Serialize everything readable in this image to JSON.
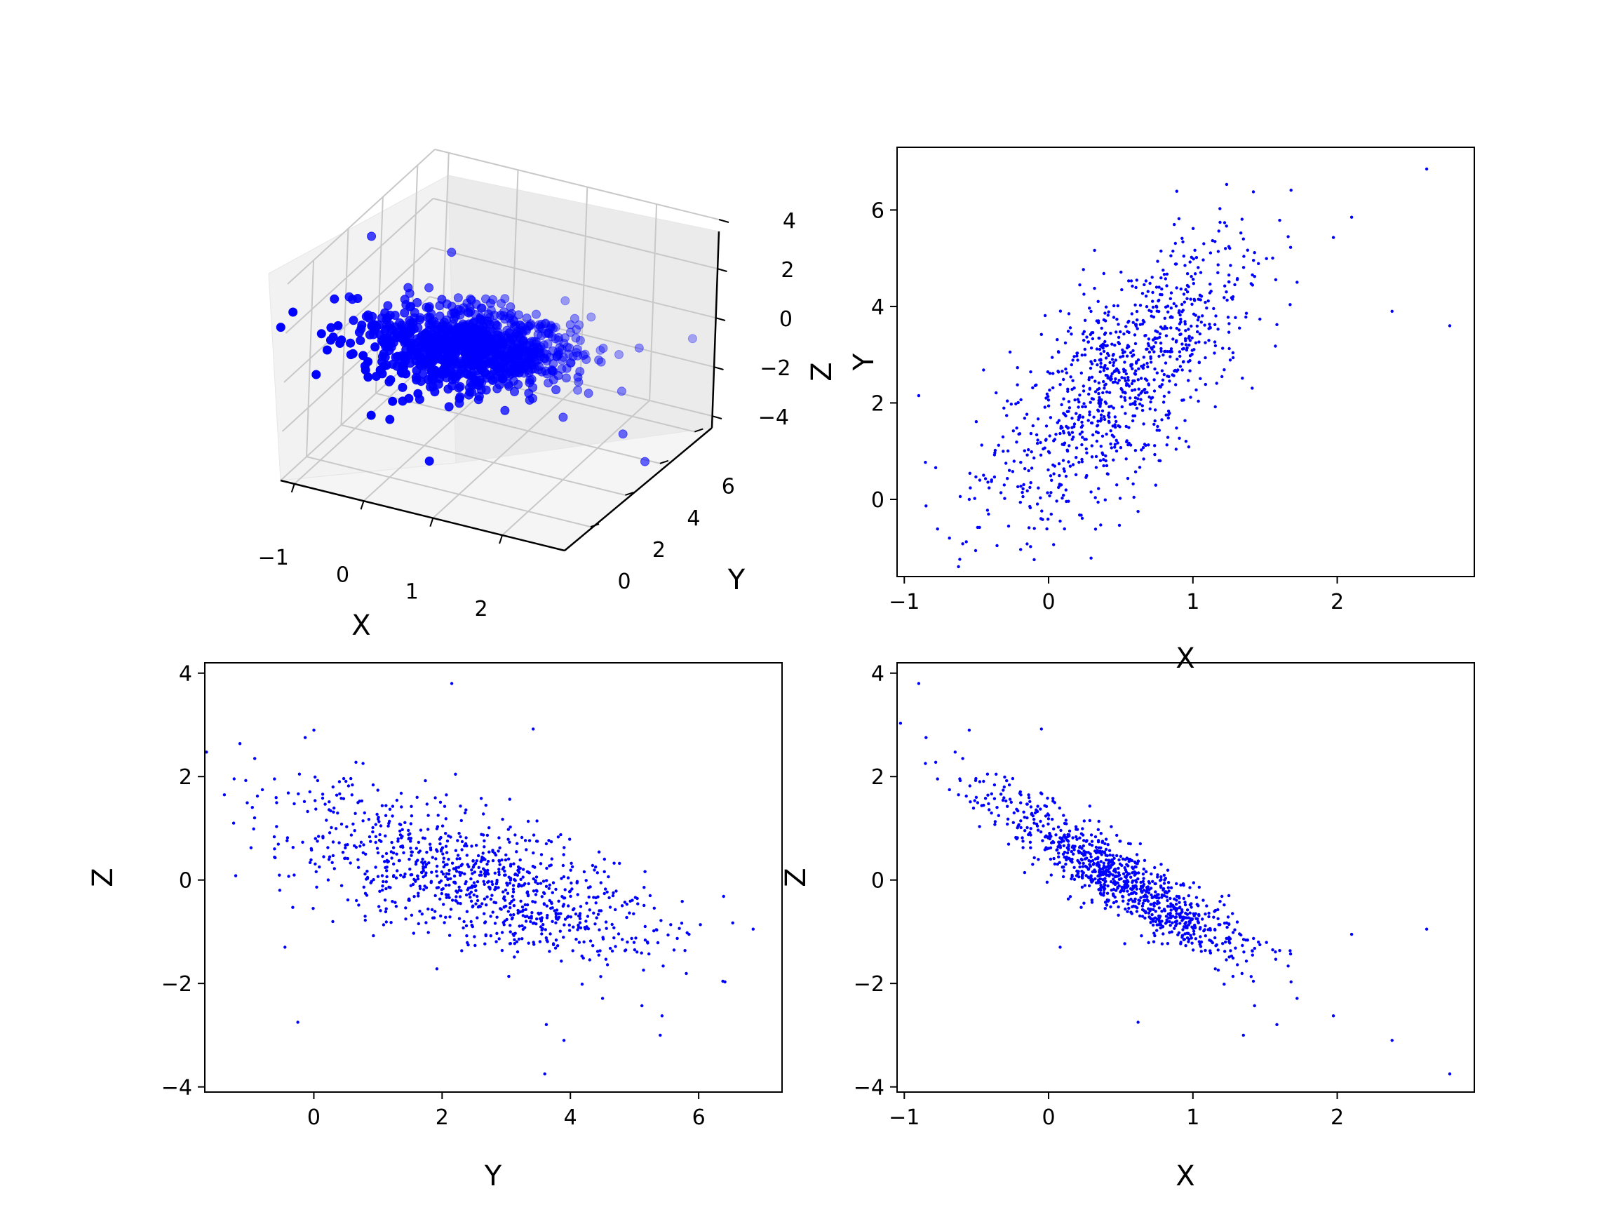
{
  "chart_data": [
    {
      "id": "xyz3d",
      "type": "scatter3d",
      "title": "",
      "xlabel": "X",
      "ylabel": "Y",
      "zlabel": "Z",
      "xlim": [
        -1.2,
        2.9
      ],
      "ylim": [
        -1.5,
        7.0
      ],
      "zlim": [
        -4.0,
        4.0
      ],
      "xticks": [
        -1,
        0,
        1,
        2
      ],
      "yticks": [
        0,
        2,
        4,
        6
      ],
      "zticks": [
        -4,
        -2,
        0,
        2,
        4
      ],
      "tick_labels": {
        "x": [
          "−1",
          "0",
          "1",
          "2"
        ],
        "y": [
          "0",
          "2",
          "4",
          "6"
        ],
        "z": [
          "−4",
          "−2",
          "0",
          "2",
          "4"
        ]
      },
      "marker_color": "#0000ff",
      "grid": true
    },
    {
      "id": "xy",
      "type": "scatter",
      "title": "",
      "xlabel": "X",
      "ylabel": "Y",
      "xlim": [
        -1.05,
        2.95
      ],
      "ylim": [
        -1.6,
        7.3
      ],
      "xticks": [
        -1,
        0,
        1,
        2
      ],
      "yticks": [
        0,
        2,
        4,
        6
      ],
      "xtick_labels": [
        "−1",
        "0",
        "1",
        "2"
      ],
      "ytick_labels": [
        "0",
        "2",
        "4",
        "6"
      ],
      "marker_color": "#0000ff",
      "grid": false
    },
    {
      "id": "yz",
      "type": "scatter",
      "title": "",
      "xlabel": "Y",
      "ylabel": "Z",
      "xlim": [
        -1.7,
        7.3
      ],
      "ylim": [
        -4.1,
        4.2
      ],
      "xticks": [
        0,
        2,
        4,
        6
      ],
      "yticks": [
        -4,
        -2,
        0,
        2,
        4
      ],
      "xtick_labels": [
        "0",
        "2",
        "4",
        "6"
      ],
      "ytick_labels": [
        "−4",
        "−2",
        "0",
        "2",
        "4"
      ],
      "marker_color": "#0000ff",
      "grid": false
    },
    {
      "id": "xz",
      "type": "scatter",
      "title": "",
      "xlabel": "X",
      "ylabel": "Z",
      "xlim": [
        -1.05,
        2.95
      ],
      "ylim": [
        -4.1,
        4.2
      ],
      "xticks": [
        -1,
        0,
        1,
        2
      ],
      "yticks": [
        -4,
        -2,
        0,
        2,
        4
      ],
      "xtick_labels": [
        "−1",
        "0",
        "1",
        "2"
      ],
      "ytick_labels": [
        "−4",
        "−2",
        "0",
        "2",
        "4"
      ],
      "marker_color": "#0000ff",
      "grid": false
    }
  ],
  "points": {
    "count": 1000,
    "x_mean": 0.5,
    "x_sd": 0.45,
    "y_mean": 2.5,
    "y_sd": 1.45,
    "z_mean": 0.0,
    "z_sd": 1.15,
    "corr_xy": 0.7,
    "corr_xz": -0.65,
    "outliers": [
      {
        "x": 2.62,
        "y": 6.85,
        "z": -0.95
      },
      {
        "x": 2.78,
        "y": 3.6,
        "z": -3.75
      },
      {
        "x": -0.9,
        "y": 2.15,
        "z": 3.8
      },
      {
        "x": 2.1,
        "y": 5.85,
        "z": -1.05
      },
      {
        "x": -0.55,
        "y": 0.0,
        "z": 2.9
      },
      {
        "x": 2.38,
        "y": 3.9,
        "z": -3.1
      },
      {
        "x": 0.62,
        "y": -0.25,
        "z": -2.75
      },
      {
        "x": -0.1,
        "y": -1.25,
        "z": 1.1
      },
      {
        "x": 0.08,
        "y": -0.45,
        "z": -1.3
      },
      {
        "x": -0.05,
        "y": 3.42,
        "z": 2.92
      },
      {
        "x": 1.35,
        "y": 5.4,
        "z": -3.0
      }
    ]
  }
}
